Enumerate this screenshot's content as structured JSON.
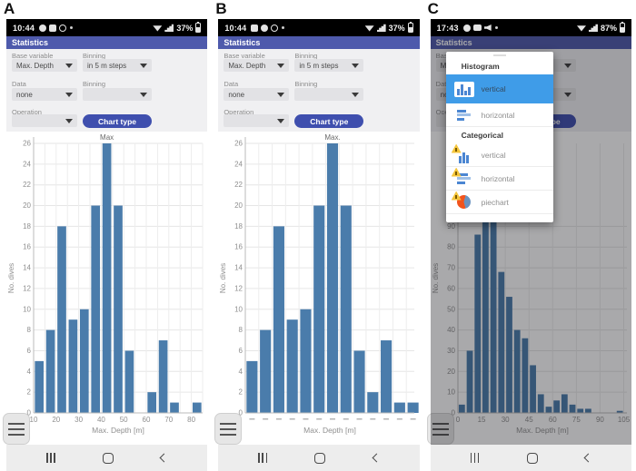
{
  "panels": {
    "a": {
      "label": "A",
      "status": {
        "time": "10:44",
        "battery": "37%",
        "left_icons": [
          "whatsapp-icon",
          "gallery-icon",
          "compass-icon",
          "dot-icon"
        ],
        "right_icons": [
          "wifi-icon",
          "signal-icon"
        ]
      },
      "app_title": "Statistics"
    },
    "b": {
      "label": "B",
      "status": {
        "time": "10:44",
        "battery": "37%",
        "left_icons": [
          "gallery-icon",
          "whatsapp-icon",
          "compass-icon",
          "dot-icon"
        ],
        "right_icons": [
          "wifi-icon",
          "signal-icon"
        ]
      },
      "app_title": "Statistics"
    },
    "c": {
      "label": "C",
      "status": {
        "time": "17:43",
        "battery": "87%",
        "left_icons": [
          "whatsapp-icon",
          "youtube-icon",
          "speaker-icon",
          "dot-icon"
        ],
        "right_icons": [
          "wifi-icon",
          "signal-icon"
        ]
      },
      "app_title": "Statistics"
    }
  },
  "form": {
    "base_variable_label": "Base variable",
    "base_variable_value": "Max. Depth",
    "binning1_label": "Binning",
    "binning1_value": "in 5 m steps",
    "data_label": "Data",
    "data_value": "none",
    "binning2_label": "Binning",
    "binning2_value": "",
    "operation_label": "Operation",
    "operation_value": "",
    "chart_type_button": "Chart type"
  },
  "popup": {
    "highlight_color": "#3f9ce8",
    "sections": [
      {
        "header": "Histogram",
        "items": [
          {
            "label": "vertical",
            "icon": "histogram-vertical-icon",
            "selected": true
          },
          {
            "label": "horizontal",
            "icon": "histogram-horizontal-icon",
            "selected": false
          }
        ]
      },
      {
        "header": "Categorical",
        "items": [
          {
            "label": "vertical",
            "icon": "categorical-vertical-icon",
            "selected": false
          },
          {
            "label": "horizontal",
            "icon": "categorical-horizontal-icon",
            "selected": false
          },
          {
            "label": "piechart",
            "icon": "categorical-piechart-icon",
            "selected": false
          }
        ]
      }
    ]
  },
  "navbar": {
    "icons": [
      "recents-icon",
      "home-icon",
      "back-icon"
    ]
  },
  "colors": {
    "appbar": "#4e5aac",
    "button": "#3f4fae",
    "bar_blue": "#4a7cab",
    "popup_highlight": "#3f9ce8",
    "grid": "#e6e6e6",
    "axis_text": "#8f8f8f"
  },
  "chart_data": [
    {
      "panel": "A",
      "type": "bar",
      "layout": "numeric",
      "title": "Max",
      "annotation": "Max",
      "xlabel": "Max. Depth [m]",
      "ylabel": "No. dives",
      "bin_start": 10,
      "bin_width": 5,
      "categories": [
        10,
        15,
        20,
        25,
        30,
        35,
        40,
        45,
        50,
        55,
        60,
        65,
        70,
        75,
        80
      ],
      "values": [
        5,
        8,
        18,
        9,
        10,
        20,
        26,
        20,
        6,
        0,
        2,
        7,
        1,
        0,
        1
      ],
      "xticks": [
        10,
        20,
        30,
        40,
        50,
        60,
        70,
        80
      ],
      "xlim": [
        10,
        85
      ],
      "xgrid_step": 5,
      "ylim": [
        0,
        26
      ],
      "ytick_step": 2,
      "ytick_max": 26,
      "bar_color": "#4a7cab",
      "grid": true
    },
    {
      "panel": "B",
      "type": "bar",
      "layout": "slots",
      "title": "Max.",
      "annotation": "Max.",
      "xlabel": "Max. Depth [m]",
      "ylabel": "No. dives",
      "categories": [
        "10-15",
        "15-20",
        "20-25",
        "25-30",
        "30-35",
        "35-40",
        "40-45",
        "45-50",
        "50-55",
        "60-65",
        "65-70",
        "70-75",
        "80-85"
      ],
      "values": [
        5,
        8,
        18,
        9,
        10,
        20,
        26,
        20,
        6,
        2,
        7,
        1,
        1
      ],
      "xtick_dashes": true,
      "ylim": [
        0,
        26
      ],
      "ytick_step": 2,
      "ytick_max": 26,
      "bar_color": "#4a7cab",
      "grid": true
    },
    {
      "panel": "C",
      "type": "bar",
      "layout": "numeric",
      "dimmed": true,
      "xlabel": "Max. Depth [m]",
      "ylabel": "No. dives",
      "bin_start": 0,
      "bin_width": 5,
      "categories": [
        0,
        5,
        10,
        15,
        20,
        25,
        30,
        35,
        40,
        45,
        50,
        55,
        60,
        65,
        70,
        75,
        80,
        85,
        90,
        95,
        100
      ],
      "values": [
        4,
        30,
        86,
        95,
        96,
        68,
        56,
        40,
        36,
        23,
        9,
        3,
        6,
        9,
        4,
        2,
        2,
        0,
        0,
        0,
        1
      ],
      "xticks": [
        0,
        15,
        30,
        45,
        60,
        75,
        90,
        105
      ],
      "xlim": [
        0,
        107
      ],
      "xgrid_step": 15,
      "ylim": [
        0,
        130
      ],
      "ytick_step": 10,
      "ytick_max": 90,
      "bar_color": "#4a7cab",
      "grid": true
    }
  ]
}
